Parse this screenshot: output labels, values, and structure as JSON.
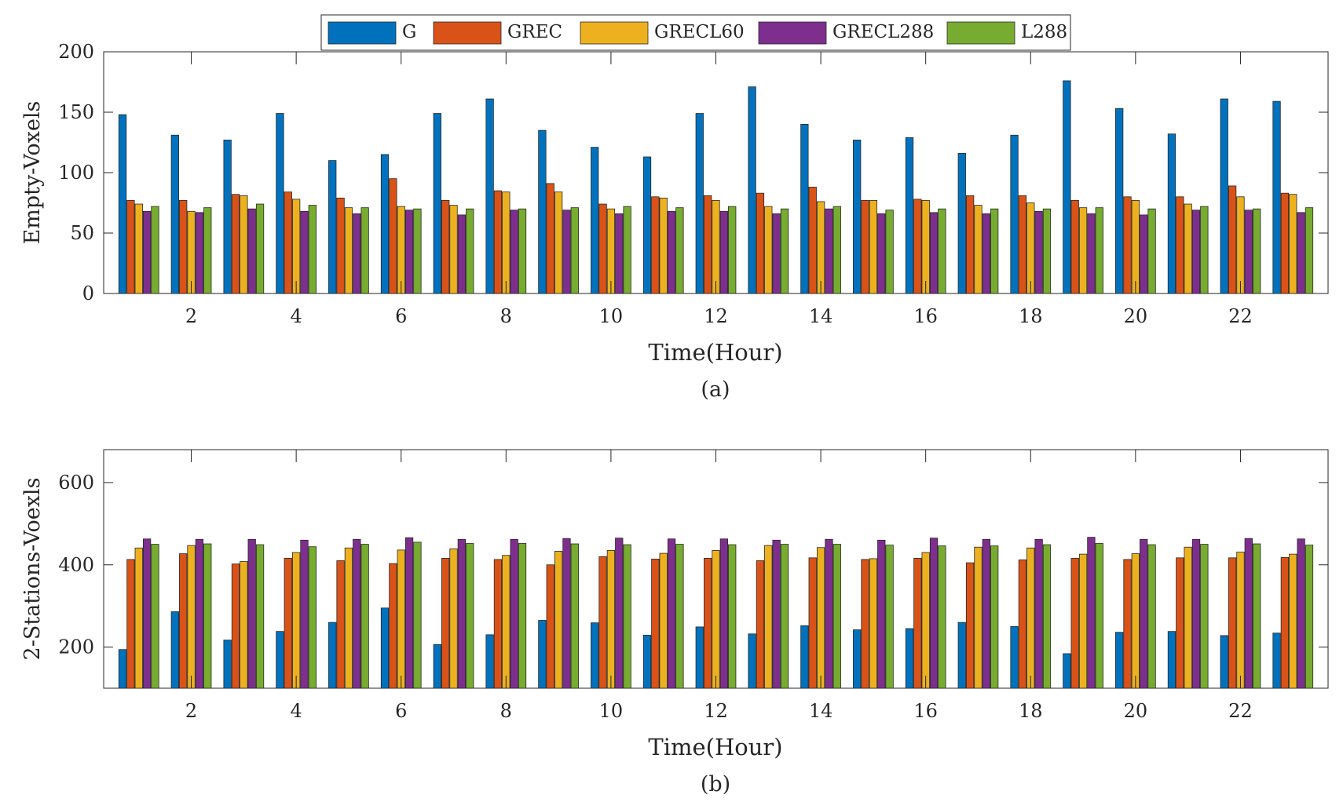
{
  "legend": [
    {
      "name": "G",
      "color": "#0072BD"
    },
    {
      "name": "GREC",
      "color": "#D95319"
    },
    {
      "name": "GRECL60",
      "color": "#EDB120"
    },
    {
      "name": "GRECL288",
      "color": "#7E2F8E"
    },
    {
      "name": "L288",
      "color": "#77AC30"
    }
  ],
  "chart_data": [
    {
      "type": "bar",
      "caption": "(a)",
      "xlabel": "Time(Hour)",
      "ylabel": "Empty-Voxels",
      "ylim": [
        0,
        200
      ],
      "yticks": [
        0,
        50,
        100,
        150,
        200
      ],
      "xticks": [
        2,
        4,
        6,
        8,
        10,
        12,
        14,
        16,
        18,
        20,
        22
      ],
      "categories": [
        1,
        2,
        3,
        4,
        5,
        6,
        7,
        8,
        9,
        10,
        11,
        12,
        13,
        14,
        15,
        16,
        17,
        18,
        19,
        20,
        21,
        22,
        23
      ],
      "series": [
        {
          "name": "G",
          "values": [
            148,
            131,
            127,
            149,
            110,
            115,
            149,
            161,
            135,
            121,
            113,
            149,
            171,
            140,
            127,
            129,
            116,
            131,
            176,
            153,
            132,
            161,
            159
          ]
        },
        {
          "name": "GREC",
          "values": [
            77,
            77,
            82,
            84,
            79,
            95,
            77,
            85,
            91,
            74,
            80,
            81,
            83,
            88,
            77,
            78,
            81,
            81,
            77,
            80,
            80,
            89,
            83
          ]
        },
        {
          "name": "GRECL60",
          "values": [
            74,
            68,
            81,
            78,
            71,
            72,
            73,
            84,
            84,
            70,
            79,
            77,
            72,
            76,
            77,
            77,
            73,
            75,
            71,
            77,
            74,
            80,
            82
          ]
        },
        {
          "name": "GRECL288",
          "values": [
            68,
            67,
            70,
            68,
            66,
            69,
            65,
            69,
            69,
            66,
            68,
            68,
            66,
            70,
            66,
            67,
            66,
            68,
            66,
            65,
            69,
            69,
            67
          ]
        },
        {
          "name": "L288",
          "values": [
            72,
            71,
            74,
            73,
            71,
            70,
            70,
            70,
            71,
            72,
            71,
            72,
            70,
            72,
            69,
            70,
            70,
            70,
            71,
            70,
            72,
            70,
            71
          ]
        }
      ]
    },
    {
      "type": "bar",
      "caption": "(b)",
      "xlabel": "Time(Hour)",
      "ylabel": "2-Stations-Voexls",
      "ylim": [
        100,
        680
      ],
      "yticks": [
        200,
        400,
        600
      ],
      "xticks": [
        2,
        4,
        6,
        8,
        10,
        12,
        14,
        16,
        18,
        20,
        22
      ],
      "categories": [
        1,
        2,
        3,
        4,
        5,
        6,
        7,
        8,
        9,
        10,
        11,
        12,
        13,
        14,
        15,
        16,
        17,
        18,
        19,
        20,
        21,
        22,
        23
      ],
      "series": [
        {
          "name": "G",
          "values": [
            194,
            286,
            217,
            238,
            260,
            295,
            206,
            230,
            265,
            259,
            229,
            249,
            232,
            252,
            242,
            245,
            260,
            250,
            184,
            236,
            238,
            228,
            234
          ]
        },
        {
          "name": "GREC",
          "values": [
            413,
            427,
            402,
            416,
            410,
            403,
            416,
            413,
            400,
            420,
            414,
            416,
            410,
            417,
            413,
            416,
            405,
            412,
            416,
            413,
            417,
            417,
            418
          ]
        },
        {
          "name": "GRECL60",
          "values": [
            441,
            447,
            408,
            430,
            441,
            436,
            439,
            423,
            433,
            435,
            428,
            435,
            447,
            442,
            415,
            430,
            443,
            441,
            426,
            427,
            443,
            431,
            426
          ]
        },
        {
          "name": "GRECL288",
          "values": [
            463,
            462,
            462,
            460,
            462,
            466,
            462,
            462,
            464,
            465,
            463,
            463,
            460,
            462,
            460,
            465,
            462,
            462,
            467,
            462,
            462,
            464,
            463
          ]
        },
        {
          "name": "L288",
          "values": [
            450,
            451,
            449,
            444,
            450,
            455,
            452,
            452,
            451,
            449,
            450,
            449,
            450,
            450,
            448,
            446,
            446,
            449,
            452,
            449,
            450,
            451,
            448
          ]
        }
      ]
    }
  ]
}
